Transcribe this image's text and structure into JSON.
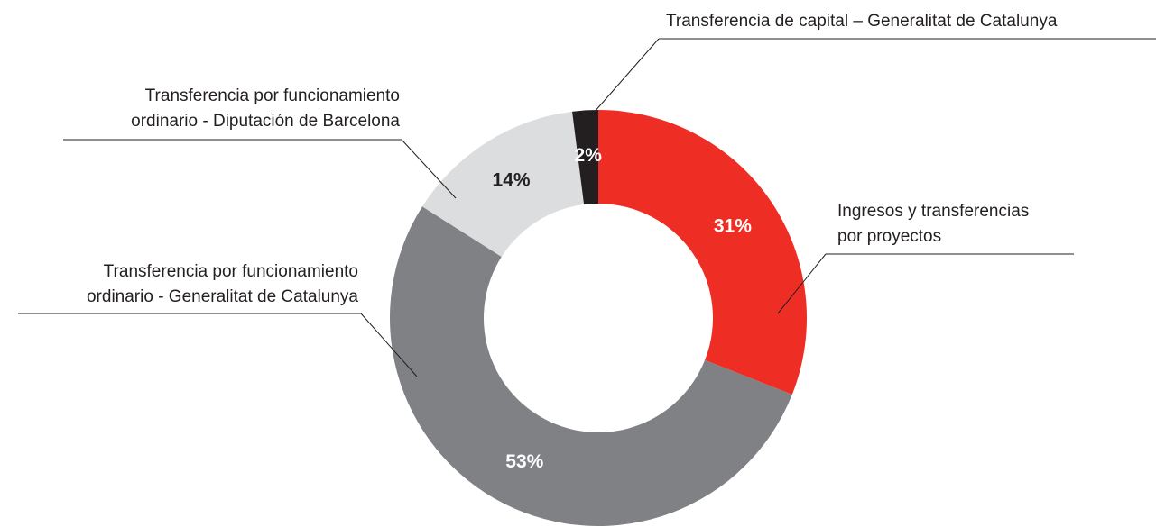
{
  "chart_data": {
    "type": "donut",
    "categories": [
      [
        "Ingresos y transferencias",
        "por proyectos"
      ],
      [
        "Transferencia por funcionamiento",
        "ordinario - Generalitat de Catalunya"
      ],
      [
        "Transferencia por funcionamiento",
        "ordinario - Diputación de Barcelona"
      ],
      [
        "Transferencia de capital – Generalitat de Catalunya"
      ]
    ],
    "values": [
      31,
      53,
      14,
      2
    ],
    "value_labels": [
      "31%",
      "53%",
      "14%",
      "2%"
    ],
    "colors": [
      "#ee2e24",
      "#808184",
      "#dcdddf",
      "#231f20"
    ],
    "label_colors": [
      "#ffffff",
      "#ffffff",
      "#231f20",
      "#ffffff"
    ]
  }
}
